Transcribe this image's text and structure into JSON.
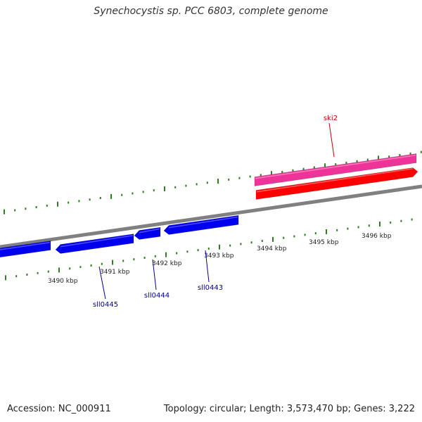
{
  "title": "Synechocystis sp. PCC 6803, complete genome",
  "footer": {
    "accession": "Accession: NC_000911",
    "stats": "Topology: circular; Length: 3,573,470 bp; Genes: 3,222"
  },
  "colors": {
    "backbone": "#808080",
    "reverse_gene": "#0000ee",
    "forward_gene": "#ff0000",
    "highlight_gene": "#ee3399",
    "tick": "#2e7d1f",
    "label_forward": "#cc0000",
    "label_reverse": "#00008b"
  },
  "ticks": {
    "unit": "kbp",
    "labels": [
      "3490 kbp",
      "3491 kbp",
      "3492 kbp",
      "3493 kbp",
      "3494 kbp",
      "3495 kbp",
      "3496 kbp"
    ]
  },
  "genes": [
    {
      "name": "sll0445",
      "strand": "reverse",
      "labeled": true
    },
    {
      "name": "sll0444",
      "strand": "reverse",
      "labeled": true
    },
    {
      "name": "sll0443",
      "strand": "reverse",
      "labeled": true
    },
    {
      "name": "ski2",
      "strand": "forward",
      "labeled": true
    }
  ]
}
